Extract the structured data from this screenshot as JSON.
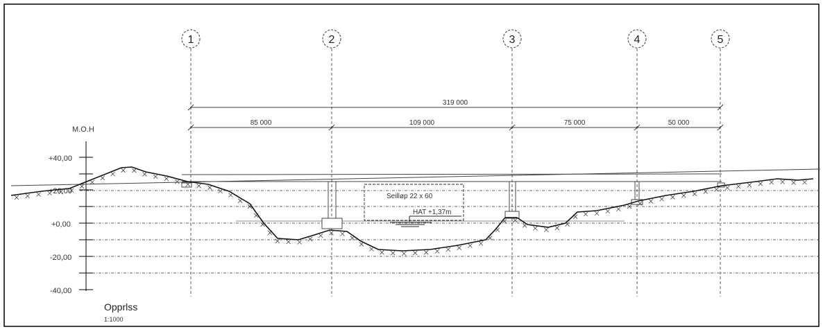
{
  "drawing": {
    "title": "Opprlss",
    "scale": "1:1000",
    "elevation_label": "M.O.H",
    "elevation_ticks": [
      "+40,00",
      "+20,00",
      "+0,00",
      "-20,00",
      "-40,00"
    ],
    "axes": [
      "1",
      "2",
      "3",
      "4",
      "5"
    ],
    "total_span": "319 000",
    "spans": [
      "85 000",
      "109 000",
      "75 000",
      "50 000"
    ],
    "navigation_channel": "Seilløp 22 x 60",
    "water_level": "HAT +1,37m"
  }
}
